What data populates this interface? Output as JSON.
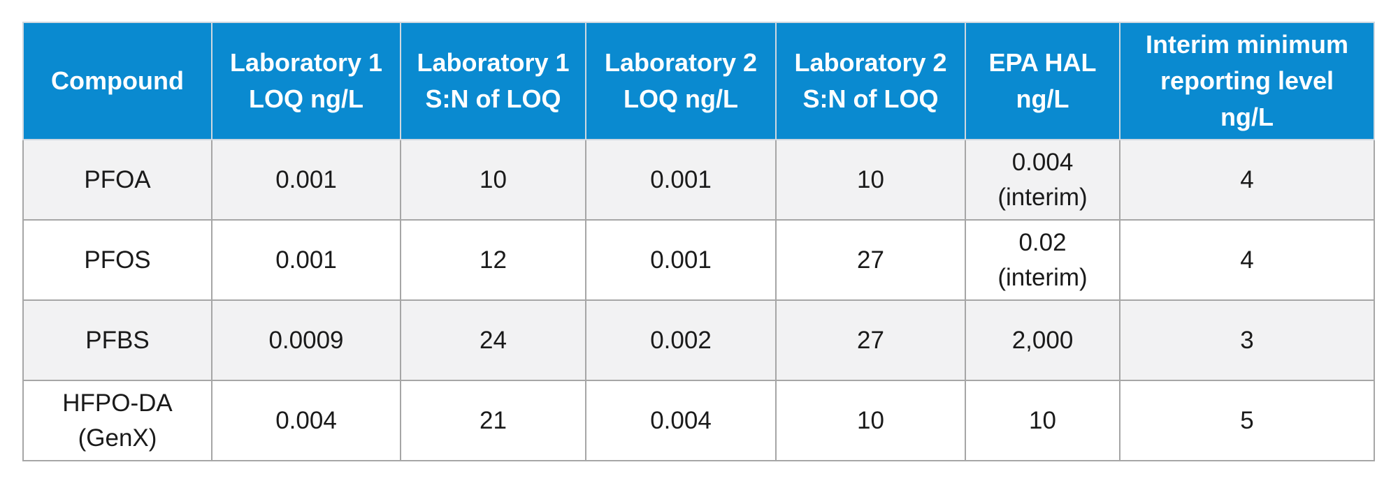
{
  "table": {
    "headers": [
      [
        "Compound"
      ],
      [
        "Laboratory 1",
        "LOQ ng/L"
      ],
      [
        "Laboratory 1",
        "S:N of LOQ"
      ],
      [
        "Laboratory 2",
        "LOQ ng/L"
      ],
      [
        "Laboratory 2",
        "S:N of LOQ"
      ],
      [
        "EPA HAL",
        "ng/L"
      ],
      [
        "Interim minimum",
        "reporting level",
        "ng/L"
      ]
    ],
    "rows": [
      [
        [
          "PFOA"
        ],
        [
          "0.001"
        ],
        [
          "10"
        ],
        [
          "0.001"
        ],
        [
          "10"
        ],
        [
          "0.004",
          "(interim)"
        ],
        [
          "4"
        ]
      ],
      [
        [
          "PFOS"
        ],
        [
          "0.001"
        ],
        [
          "12"
        ],
        [
          "0.001"
        ],
        [
          "27"
        ],
        [
          "0.02",
          "(interim)"
        ],
        [
          "4"
        ]
      ],
      [
        [
          "PFBS"
        ],
        [
          "0.0009"
        ],
        [
          "24"
        ],
        [
          "0.002"
        ],
        [
          "27"
        ],
        [
          "2,000"
        ],
        [
          "3"
        ]
      ],
      [
        [
          "HFPO-DA",
          "(GenX)"
        ],
        [
          "0.004"
        ],
        [
          "21"
        ],
        [
          "0.004"
        ],
        [
          "10"
        ],
        [
          "10"
        ],
        [
          "5"
        ]
      ]
    ],
    "colors": {
      "header_bg": "#0a8ad0",
      "header_text": "#ffffff",
      "row_alt_bg": "#f2f2f3",
      "row_bg": "#ffffff",
      "border": "#a6a6a6"
    }
  }
}
